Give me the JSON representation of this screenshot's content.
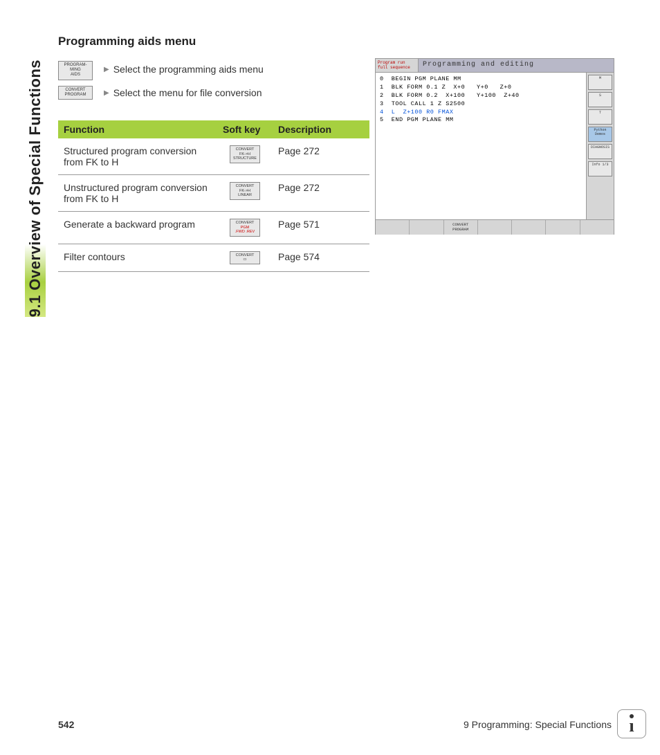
{
  "sideTab": "9.1 Overview of Special Functions",
  "heading": "Programming aids menu",
  "introIcons": [
    "PROGRAM-\nMING\nAIDS",
    "CONVERT\nPROGRAM"
  ],
  "bullets": [
    "Select the programming aids menu",
    "Select the menu for file conversion"
  ],
  "table": {
    "headers": [
      "Function",
      "Soft key",
      "Description"
    ],
    "rows": [
      {
        "func": "Structured program conversion from FK to H",
        "softkey": "CONVERT\nFK->H\nSTRUCTURE",
        "desc": "Page 272"
      },
      {
        "func": "Unstructured program conversion from FK to H",
        "softkey": "CONVERT\nFK->H\nLINEAR",
        "desc": "Page 272"
      },
      {
        "func": "Generate a backward program",
        "softkey": "CONVERT\nPGM\n.FWD .REV",
        "desc": "Page 571",
        "red": true
      },
      {
        "func": "Filter contours",
        "softkey": "CONVERT\n▭",
        "desc": "Page 574"
      }
    ]
  },
  "screen": {
    "modeLeft": "Program run\nfull sequence",
    "title": "Programming and editing",
    "code": [
      "0  BEGIN PGM PLANE MM",
      "1  BLK FORM 0.1 Z  X+0   Y+0   Z+0",
      "2  BLK FORM 0.2  X+100   Y+100  Z+40",
      "3  TOOL CALL 1 Z S2500",
      "4  L  Z+100 R0 FMAX",
      "5  END PGM PLANE MM"
    ],
    "highlightLine": 4,
    "rightButtons": [
      "M",
      "S",
      "T",
      "Python\nDemos",
      "DIAGNOSIS",
      "Info 1/3"
    ],
    "footerButtons": [
      "",
      "",
      "CONVERT\nPROGRAM",
      "",
      "",
      "",
      ""
    ]
  },
  "footer": {
    "pageNum": "542",
    "chapter": "9 Programming: Special Functions"
  }
}
